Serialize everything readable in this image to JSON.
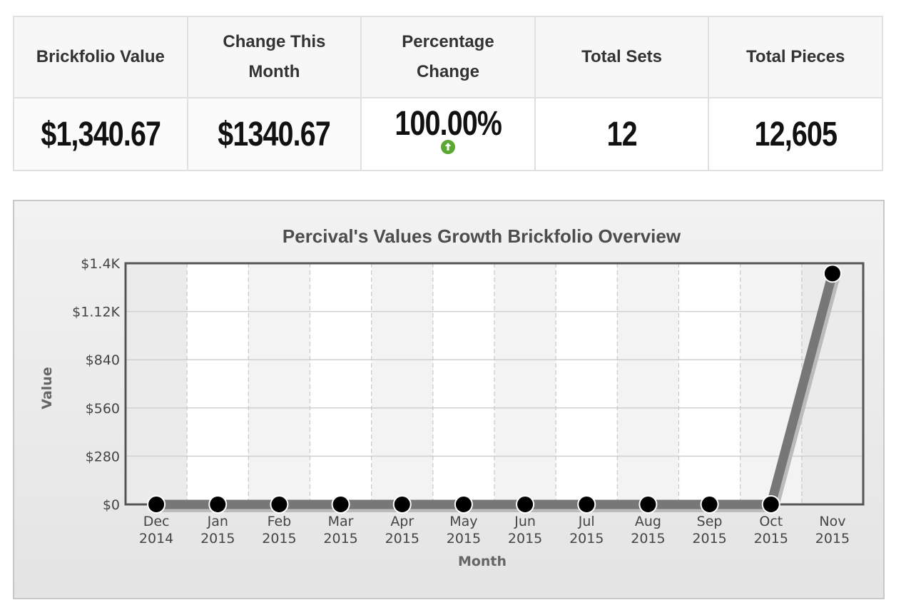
{
  "stats": {
    "headers": {
      "brickfolio_value": "Brickfolio Value",
      "change_this_month": "Change This Month",
      "percentage_change": "Percentage Change",
      "total_sets": "Total Sets",
      "total_pieces": "Total Pieces"
    },
    "values": {
      "brickfolio_value": "$1,340.67",
      "change_this_month": "$1340.67",
      "percentage_change": "100.00%",
      "total_sets": "12",
      "total_pieces": "12,605"
    },
    "trend_icon": "arrow-up-circle-icon",
    "trend_color": "#5aa832"
  },
  "chart_data": {
    "type": "line",
    "title": "Percival's Values Growth Brickfolio Overview",
    "xlabel": "Month",
    "ylabel": "Value",
    "categories": [
      [
        "Dec",
        "2014"
      ],
      [
        "Jan",
        "2015"
      ],
      [
        "Feb",
        "2015"
      ],
      [
        "Mar",
        "2015"
      ],
      [
        "Apr",
        "2015"
      ],
      [
        "May",
        "2015"
      ],
      [
        "Jun",
        "2015"
      ],
      [
        "Jul",
        "2015"
      ],
      [
        "Aug",
        "2015"
      ],
      [
        "Sep",
        "2015"
      ],
      [
        "Oct",
        "2015"
      ],
      [
        "Nov",
        "2015"
      ]
    ],
    "series": [
      {
        "name": "Value",
        "values": [
          0,
          0,
          0,
          0,
          0,
          0,
          0,
          0,
          0,
          0,
          0,
          1340.67
        ]
      }
    ],
    "ylim": [
      0,
      1400
    ],
    "yticks": [
      0,
      280,
      560,
      840,
      1120,
      1400
    ],
    "ytick_labels": [
      "$0",
      "$280",
      "$560",
      "$840",
      "$1.12K",
      "$1.4K"
    ],
    "grid": true,
    "line_color": "#777777",
    "marker_color": "#000000"
  }
}
